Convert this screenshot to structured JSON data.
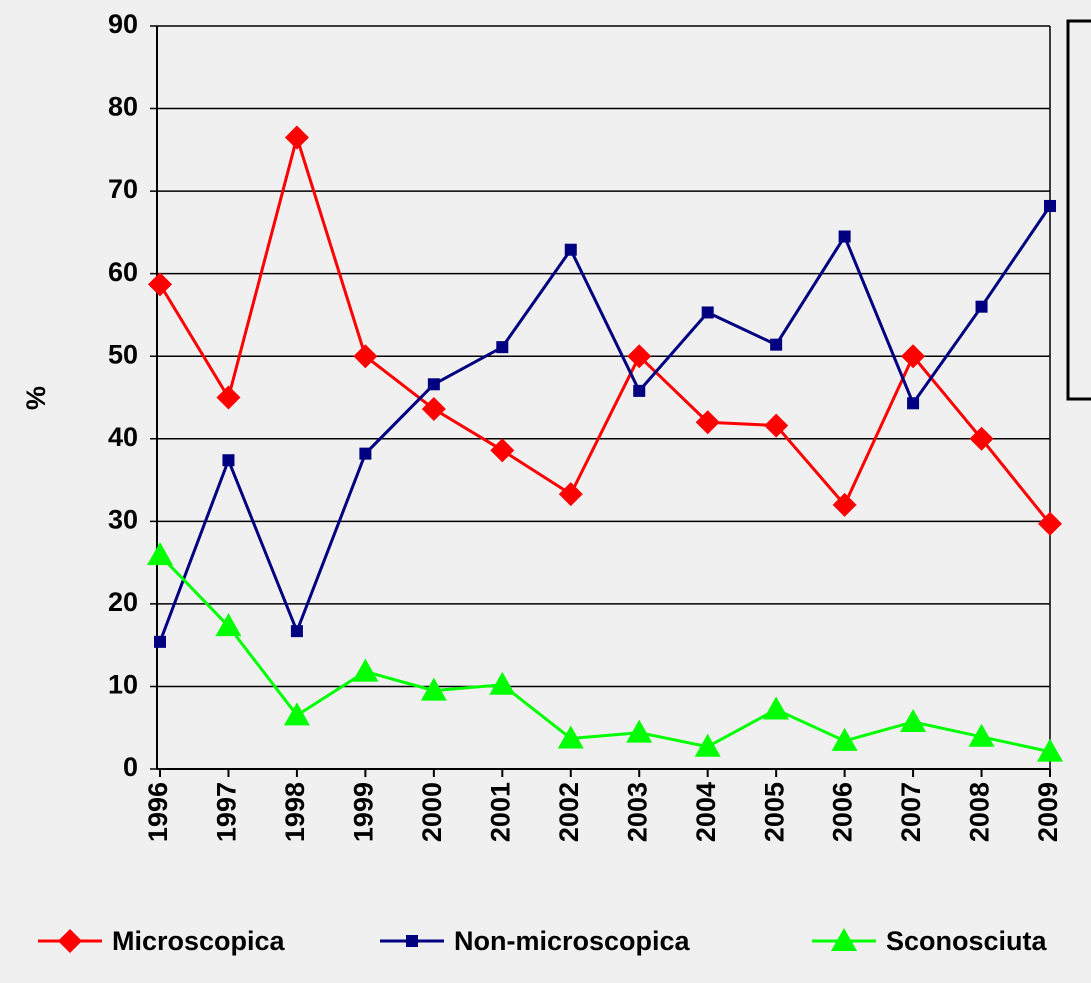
{
  "chart_data": {
    "type": "line",
    "ylabel": "%",
    "categories": [
      "1996",
      "1997",
      "1998",
      "1999",
      "2000",
      "2001",
      "2002",
      "2003",
      "2004",
      "2005",
      "2006",
      "2007",
      "2008",
      "2009"
    ],
    "series": [
      {
        "name": "Microscopica",
        "color": "#ff0000",
        "marker": "diamond",
        "values": [
          58.7,
          45,
          76.5,
          50,
          43.6,
          38.6,
          33.3,
          50,
          42,
          41.6,
          32,
          50,
          40,
          29.7
        ]
      },
      {
        "name": "Non-microscopica",
        "color": "#000080",
        "marker": "square",
        "values": [
          15.4,
          37.4,
          16.7,
          38.2,
          46.6,
          51.1,
          62.9,
          45.8,
          55.3,
          51.4,
          64.5,
          44.3,
          56,
          68.2
        ]
      },
      {
        "name": "Sconosciuta",
        "color": "#00ff00",
        "marker": "triangle",
        "values": [
          25.9,
          17.3,
          6.5,
          11.8,
          9.5,
          10.2,
          3.7,
          4.4,
          2.7,
          7.2,
          3.4,
          5.7,
          3.9,
          2.1
        ]
      }
    ],
    "ylim": [
      0,
      90
    ],
    "yticks": [
      0,
      10,
      20,
      30,
      40,
      50,
      60,
      70,
      80,
      90
    ],
    "grid": true,
    "legend": "bottom"
  }
}
